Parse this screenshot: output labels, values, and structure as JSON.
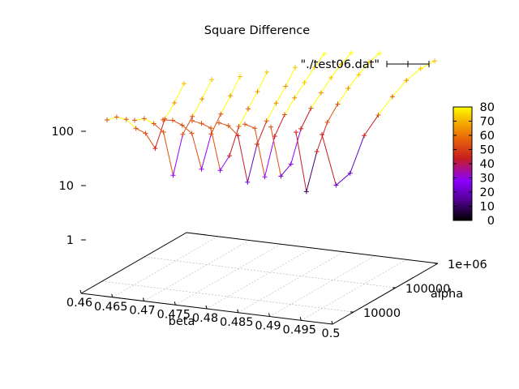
{
  "chart_data": {
    "type": "line",
    "projection": "3d-surface",
    "title": "Square Difference",
    "xlabel": "beta",
    "ylabel": "alpha",
    "zlabel": "",
    "x_ticks": [
      "0.46",
      "0.465",
      "0.47",
      "0.475",
      "0.48",
      "0.485",
      "0.49",
      "0.495",
      "0.5"
    ],
    "y_ticks": [
      "10000",
      "100000",
      "1e+06"
    ],
    "z_ticks": [
      "1",
      "10",
      "100"
    ],
    "xlim": [
      0.46,
      0.5
    ],
    "ylim_alpha_log10": [
      3.5,
      6
    ],
    "zlim_log10": [
      -1.1,
      2.1
    ],
    "z_scale": "log",
    "y_scale": "log",
    "grid": true,
    "legend": {
      "label": "\"./test06.dat\"",
      "placement": "top-right"
    },
    "colorbar": {
      "ticks": [
        "0",
        "10",
        "20",
        "30",
        "40",
        "50",
        "60",
        "70",
        "80"
      ],
      "range": [
        0,
        80
      ],
      "palette": [
        "#000000",
        "#5a00a0",
        "#8b00ff",
        "#c81e1e",
        "#e8650a",
        "#f5b400",
        "#ffff00"
      ]
    },
    "alpha_levels_log10": [
      3.55,
      3.85,
      4.15,
      4.45,
      4.75,
      5.05,
      5.35,
      5.65,
      5.95
    ],
    "series": [
      {
        "x": [
          0.46,
          0.465,
          0.47,
          0.475,
          0.48,
          0.485,
          0.49,
          0.495,
          0.5
        ],
        "z": [
          100,
          115,
          103,
          67,
          53,
          26,
          105,
          225,
          560
        ]
      },
      {
        "x": [
          0.46,
          0.465,
          0.47,
          0.475,
          0.48,
          0.485,
          0.49,
          0.495,
          0.5
        ],
        "z": [
          88,
          95,
          75,
          50,
          6.5,
          45,
          105,
          240,
          600
        ]
      },
      {
        "x": [
          0.46,
          0.465,
          0.47,
          0.475,
          0.48,
          0.485,
          0.49,
          0.495,
          0.5
        ],
        "z": [
          80,
          78,
          62,
          42,
          7.7,
          41,
          105,
          250,
          620
        ]
      },
      {
        "x": [
          0.46,
          0.465,
          0.47,
          0.475,
          0.48,
          0.485,
          0.49,
          0.495,
          0.5
        ],
        "z": [
          68,
          60,
          48,
          6.5,
          13,
          52,
          120,
          270,
          680
        ]
      },
      {
        "x": [
          0.46,
          0.465,
          0.47,
          0.475,
          0.48,
          0.485,
          0.49,
          0.495,
          0.5
        ],
        "z": [
          55,
          48,
          30,
          3.3,
          20,
          60,
          140,
          310,
          760
        ]
      },
      {
        "x": [
          0.46,
          0.465,
          0.47,
          0.475,
          0.48,
          0.485,
          0.49,
          0.495,
          0.5
        ],
        "z": [
          46,
          38,
          3.8,
          26,
          72,
          160,
          330,
          680,
          1300
        ]
      },
      {
        "x": [
          0.46,
          0.465,
          0.47,
          0.475,
          0.48,
          0.485,
          0.49,
          0.495,
          0.5
        ],
        "z": [
          36,
          3.5,
          6.2,
          33,
          87,
          180,
          370,
          700,
          1200
        ]
      },
      {
        "x": [
          0.46,
          0.465,
          0.47,
          0.475,
          0.48,
          0.485,
          0.49,
          0.495,
          0.5
        ],
        "z": [
          25,
          1.5,
          10,
          40,
          95,
          200,
          380,
          690,
          1050
        ]
      },
      {
        "x": [
          0.46,
          0.465,
          0.47,
          0.475,
          0.48,
          0.485,
          0.49,
          0.495,
          0.5
        ],
        "z": [
          20,
          1.8,
          3.2,
          19,
          50,
          120,
          260,
          450,
          650
        ]
      }
    ]
  }
}
